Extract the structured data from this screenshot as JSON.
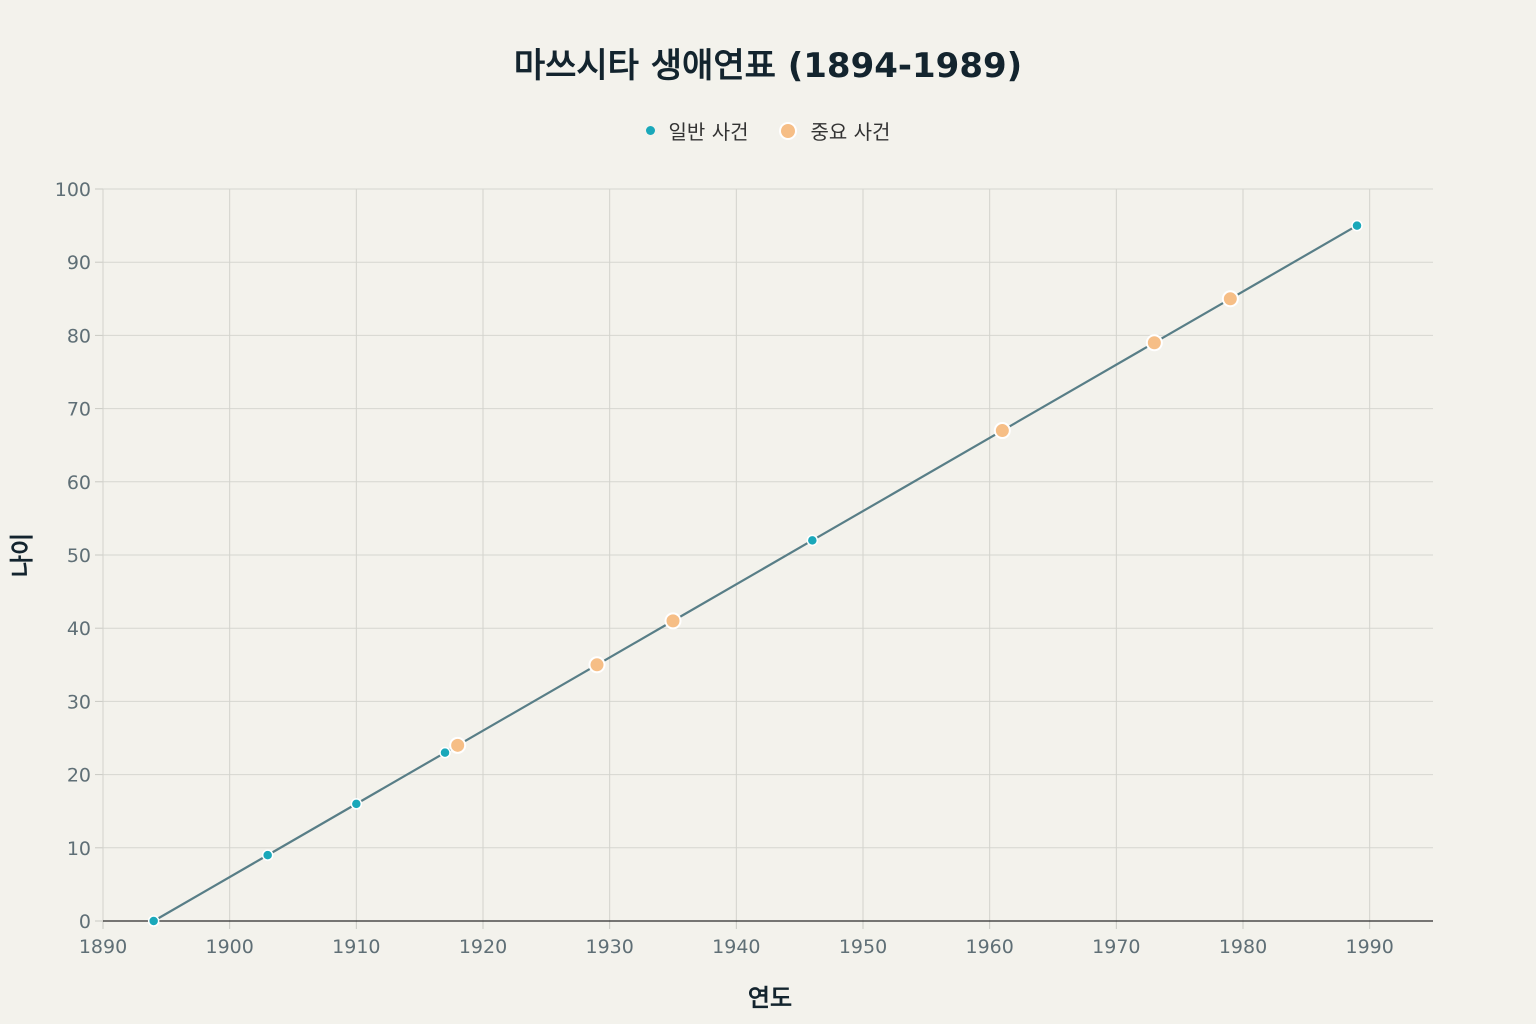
{
  "chart_data": {
    "type": "line",
    "title": "마쓰시타 생애연표 (1894-1989)",
    "xlabel": "연도",
    "ylabel": "나이",
    "xlim": [
      1890,
      1995
    ],
    "ylim": [
      0,
      100
    ],
    "xticks": [
      1890,
      1900,
      1910,
      1920,
      1930,
      1940,
      1950,
      1960,
      1970,
      1980,
      1990
    ],
    "yticks": [
      0,
      10,
      20,
      30,
      40,
      50,
      60,
      70,
      80,
      90,
      100
    ],
    "grid": true,
    "legend_position": "top-center",
    "line": {
      "color": "#587e87",
      "x": [
        1894,
        1903,
        1910,
        1917,
        1918,
        1929,
        1935,
        1946,
        1961,
        1973,
        1979,
        1989
      ],
      "y": [
        0,
        9,
        16,
        23,
        24,
        35,
        41,
        52,
        67,
        79,
        85,
        95
      ]
    },
    "series": [
      {
        "name": "일반 사건",
        "color": "#1aa8ba",
        "x": [
          1894,
          1903,
          1910,
          1917,
          1946,
          1989
        ],
        "y": [
          0,
          9,
          16,
          23,
          52,
          95
        ]
      },
      {
        "name": "중요 사건",
        "color": "#f6be86",
        "x": [
          1918,
          1929,
          1935,
          1961,
          1973,
          1979
        ],
        "y": [
          24,
          35,
          41,
          67,
          79,
          85
        ]
      }
    ]
  }
}
